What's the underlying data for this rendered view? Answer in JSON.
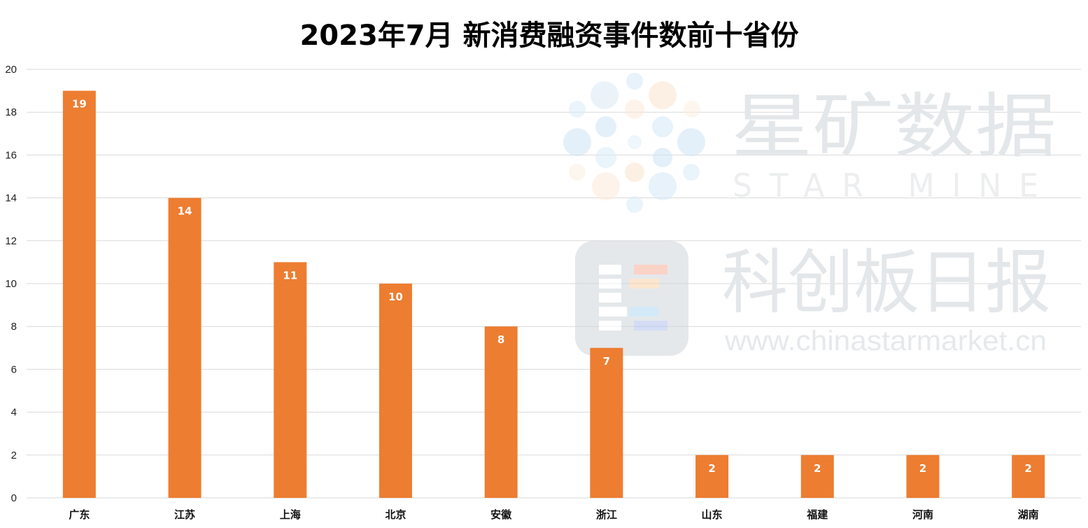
{
  "chart_data": {
    "type": "bar",
    "title": "2023年7月 新消费融资事件数前十省份",
    "categories": [
      "广东",
      "江苏",
      "上海",
      "北京",
      "安徽",
      "浙江",
      "山东",
      "福建",
      "河南",
      "湖南"
    ],
    "values": [
      19,
      14,
      11,
      10,
      8,
      7,
      2,
      2,
      2,
      2
    ],
    "ylim": [
      0,
      20
    ],
    "yticks": [
      0,
      2,
      4,
      6,
      8,
      10,
      12,
      14,
      16,
      18,
      20
    ],
    "xlabel": "",
    "ylabel": "",
    "grid": true,
    "data_labels": true,
    "bar_color": "#ed7d31",
    "grid_color": "#d9d9d9"
  },
  "watermark": {
    "brand_cn": "星矿数据",
    "brand_en": "STAR MINE",
    "publisher_cn": "科创板日报",
    "url": "www.chinastarmarket.cn"
  }
}
